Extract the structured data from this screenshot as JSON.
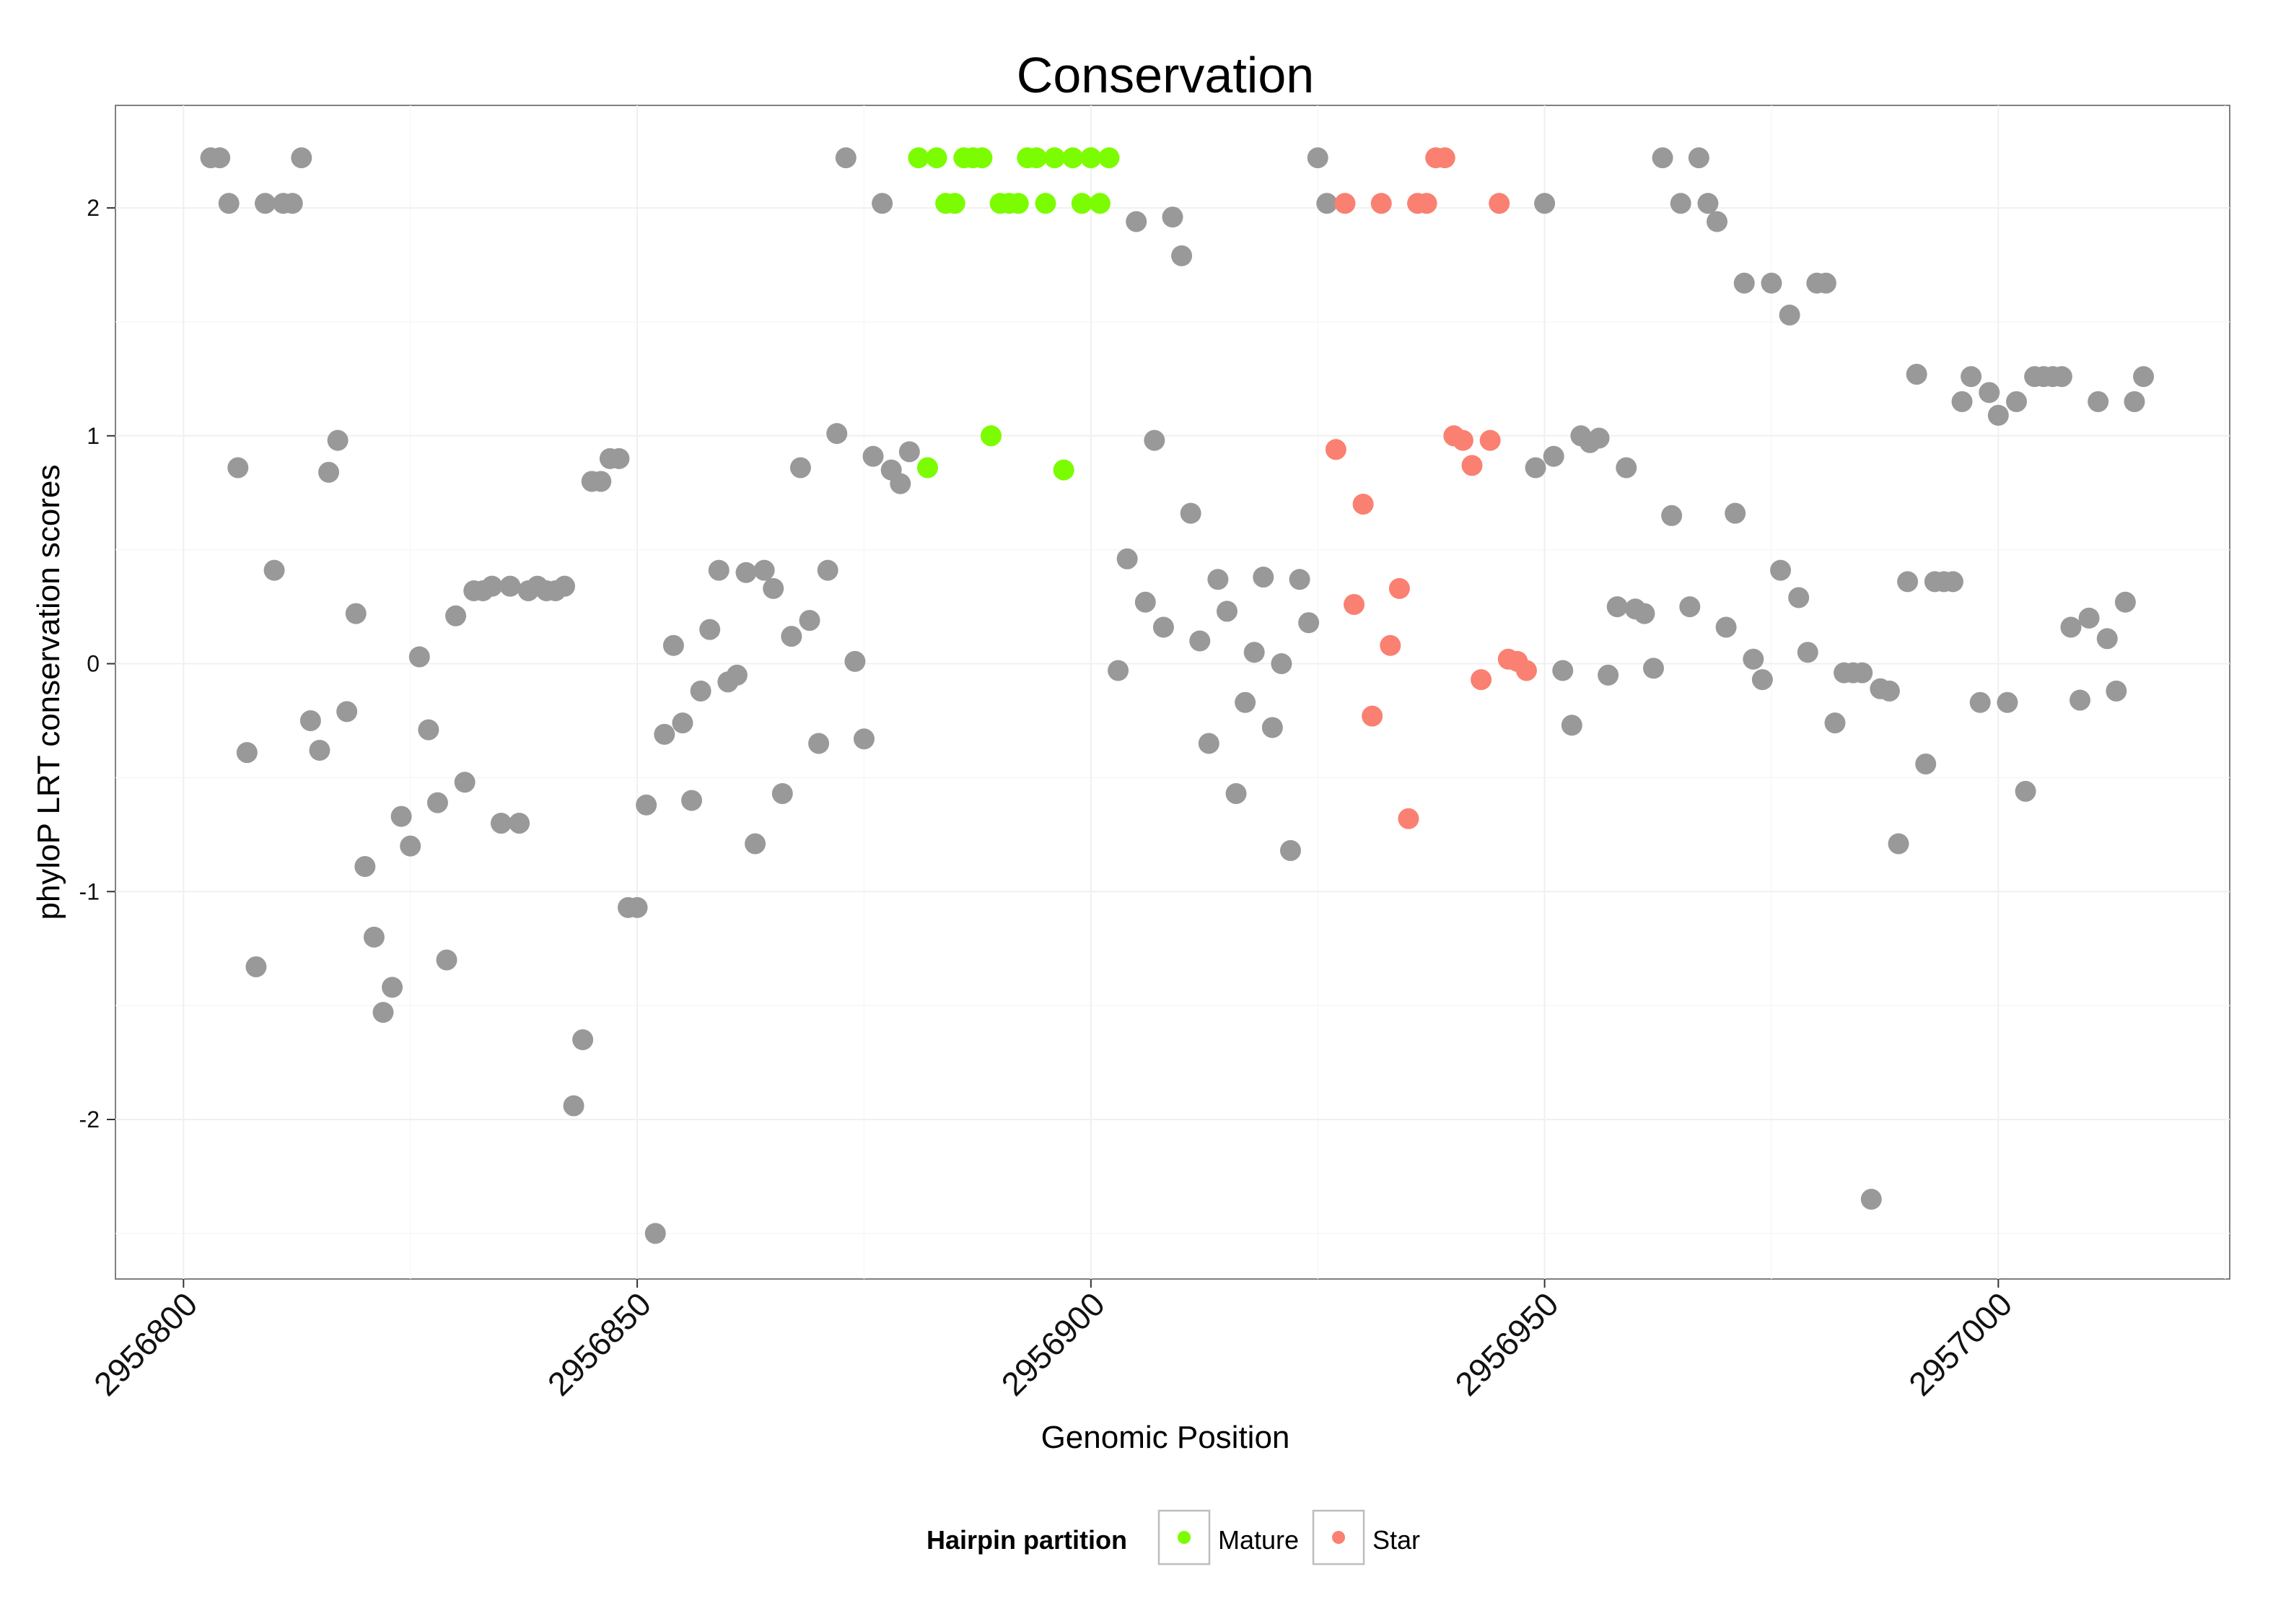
{
  "chart_data": {
    "type": "scatter",
    "title": "Conservation",
    "xlabel": "Genomic Position",
    "ylabel": "phyloP LRT conservation scores",
    "xlim": [
      2956792.5,
      2957025.5
    ],
    "ylim": [
      -2.7,
      2.45
    ],
    "x_ticks": [
      2956800,
      2956850,
      2956900,
      2956950,
      2957000
    ],
    "x_tick_labels": [
      "2956800",
      "2956850",
      "2956900",
      "2956950",
      "2957000"
    ],
    "y_ticks": [
      -2,
      -1,
      0,
      1,
      2
    ],
    "y_tick_labels": [
      "-2",
      "-1",
      "0",
      "1",
      "2"
    ],
    "grid": true,
    "legend": {
      "title": "Hairpin partition",
      "placement": "bottom",
      "entries": [
        {
          "label": "Mature",
          "color": "#7cfc00"
        },
        {
          "label": "Star",
          "color": "#fa8072"
        }
      ]
    },
    "colors": {
      "Other": "#999999",
      "Mature": "#7cfc00",
      "Star": "#fa8072"
    },
    "series": [
      {
        "name": "Other",
        "points": [
          [
            2956803,
            2.22
          ],
          [
            2956804,
            2.22
          ],
          [
            2956805,
            2.02
          ],
          [
            2956806,
            0.86
          ],
          [
            2956807,
            -0.39
          ],
          [
            2956808,
            -1.33
          ],
          [
            2956809,
            2.02
          ],
          [
            2956810,
            0.41
          ],
          [
            2956811,
            2.02
          ],
          [
            2956812,
            2.02
          ],
          [
            2956813,
            2.22
          ],
          [
            2956814,
            -0.25
          ],
          [
            2956815,
            -0.38
          ],
          [
            2956816,
            0.84
          ],
          [
            2956817,
            0.98
          ],
          [
            2956818,
            -0.21
          ],
          [
            2956819,
            0.22
          ],
          [
            2956820,
            -0.89
          ],
          [
            2956821,
            -1.2
          ],
          [
            2956822,
            -1.53
          ],
          [
            2956823,
            -1.42
          ],
          [
            2956824,
            -0.67
          ],
          [
            2956825,
            -0.8
          ],
          [
            2956826,
            0.03
          ],
          [
            2956827,
            -0.29
          ],
          [
            2956828,
            -0.61
          ],
          [
            2956829,
            -1.3
          ],
          [
            2956830,
            0.21
          ],
          [
            2956831,
            -0.52
          ],
          [
            2956832,
            0.32
          ],
          [
            2956833,
            0.32
          ],
          [
            2956834,
            0.34
          ],
          [
            2956835,
            -0.7
          ],
          [
            2956836,
            0.34
          ],
          [
            2956837,
            -0.7
          ],
          [
            2956838,
            0.32
          ],
          [
            2956839,
            0.34
          ],
          [
            2956840,
            0.32
          ],
          [
            2956841,
            0.32
          ],
          [
            2956842,
            0.34
          ],
          [
            2956843,
            -1.94
          ],
          [
            2956844,
            -1.65
          ],
          [
            2956845,
            0.8
          ],
          [
            2956846,
            0.8
          ],
          [
            2956847,
            0.9
          ],
          [
            2956848,
            0.9
          ],
          [
            2956849,
            -1.07
          ],
          [
            2956850,
            -1.07
          ],
          [
            2956851,
            -0.62
          ],
          [
            2956852,
            -2.5
          ],
          [
            2956853,
            -0.31
          ],
          [
            2956854,
            0.08
          ],
          [
            2956855,
            -0.26
          ],
          [
            2956856,
            -0.6
          ],
          [
            2956857,
            -0.12
          ],
          [
            2956858,
            0.15
          ],
          [
            2956859,
            0.41
          ],
          [
            2956860,
            -0.08
          ],
          [
            2956861,
            -0.05
          ],
          [
            2956862,
            0.4
          ],
          [
            2956863,
            -0.79
          ],
          [
            2956864,
            0.41
          ],
          [
            2956865,
            0.33
          ],
          [
            2956866,
            -0.57
          ],
          [
            2956867,
            0.12
          ],
          [
            2956868,
            0.86
          ],
          [
            2956869,
            0.19
          ],
          [
            2956870,
            -0.35
          ],
          [
            2956871,
            0.41
          ],
          [
            2956872,
            1.01
          ],
          [
            2956873,
            2.22
          ],
          [
            2956874,
            0.01
          ],
          [
            2956875,
            -0.33
          ],
          [
            2956876,
            0.91
          ],
          [
            2956877,
            2.02
          ],
          [
            2956878,
            0.85
          ],
          [
            2956879,
            0.79
          ],
          [
            2956880,
            0.93
          ],
          [
            2956903,
            -0.03
          ],
          [
            2956904,
            0.46
          ],
          [
            2956905,
            1.94
          ],
          [
            2956906,
            0.27
          ],
          [
            2956907,
            0.98
          ],
          [
            2956908,
            0.16
          ],
          [
            2956909,
            1.96
          ],
          [
            2956910,
            1.79
          ],
          [
            2956911,
            0.66
          ],
          [
            2956912,
            0.1
          ],
          [
            2956913,
            -0.35
          ],
          [
            2956914,
            0.37
          ],
          [
            2956915,
            0.23
          ],
          [
            2956916,
            -0.57
          ],
          [
            2956917,
            -0.17
          ],
          [
            2956918,
            0.05
          ],
          [
            2956919,
            0.38
          ],
          [
            2956920,
            -0.28
          ],
          [
            2956921,
            0.0
          ],
          [
            2956922,
            -0.82
          ],
          [
            2956923,
            0.37
          ],
          [
            2956924,
            0.18
          ],
          [
            2956925,
            2.22
          ],
          [
            2956926,
            2.02
          ],
          [
            2956949,
            0.86
          ],
          [
            2956950,
            2.02
          ],
          [
            2956951,
            0.91
          ],
          [
            2956952,
            -0.03
          ],
          [
            2956953,
            -0.27
          ],
          [
            2956954,
            1.0
          ],
          [
            2956955,
            0.97
          ],
          [
            2956956,
            0.99
          ],
          [
            2956957,
            -0.05
          ],
          [
            2956958,
            0.25
          ],
          [
            2956959,
            0.86
          ],
          [
            2956960,
            0.24
          ],
          [
            2956961,
            0.22
          ],
          [
            2956962,
            -0.02
          ],
          [
            2956963,
            2.22
          ],
          [
            2956964,
            0.65
          ],
          [
            2956965,
            2.02
          ],
          [
            2956966,
            0.25
          ],
          [
            2956967,
            2.22
          ],
          [
            2956968,
            2.02
          ],
          [
            2956969,
            1.94
          ],
          [
            2956970,
            0.16
          ],
          [
            2956971,
            0.66
          ],
          [
            2956972,
            1.67
          ],
          [
            2956973,
            0.02
          ],
          [
            2956974,
            -0.07
          ],
          [
            2956975,
            1.67
          ],
          [
            2956976,
            0.41
          ],
          [
            2956977,
            1.53
          ],
          [
            2956978,
            0.29
          ],
          [
            2956979,
            0.05
          ],
          [
            2956980,
            1.67
          ],
          [
            2956981,
            1.67
          ],
          [
            2956982,
            -0.26
          ],
          [
            2956983,
            -0.04
          ],
          [
            2956984,
            -0.04
          ],
          [
            2956985,
            -0.04
          ],
          [
            2956986,
            -2.35
          ],
          [
            2956987,
            -0.11
          ],
          [
            2956988,
            -0.12
          ],
          [
            2956989,
            -0.79
          ],
          [
            2956990,
            0.36
          ],
          [
            2956991,
            1.27
          ],
          [
            2956992,
            -0.44
          ],
          [
            2956993,
            0.36
          ],
          [
            2956994,
            0.36
          ],
          [
            2956995,
            0.36
          ],
          [
            2956996,
            1.15
          ],
          [
            2956997,
            1.26
          ],
          [
            2956998,
            -0.17
          ],
          [
            2956999,
            1.19
          ],
          [
            2957000,
            1.09
          ],
          [
            2957001,
            -0.17
          ],
          [
            2957002,
            1.15
          ],
          [
            2957003,
            -0.56
          ],
          [
            2957004,
            1.26
          ],
          [
            2957005,
            1.26
          ],
          [
            2957006,
            1.26
          ],
          [
            2957007,
            1.26
          ],
          [
            2957008,
            0.16
          ],
          [
            2957009,
            -0.16
          ],
          [
            2957010,
            0.2
          ],
          [
            2957011,
            1.15
          ],
          [
            2957012,
            0.11
          ],
          [
            2957013,
            -0.12
          ],
          [
            2957014,
            0.27
          ],
          [
            2957015,
            1.15
          ],
          [
            2957016,
            1.26
          ]
        ]
      },
      {
        "name": "Mature",
        "points": [
          [
            2956881,
            2.22
          ],
          [
            2956882,
            0.86
          ],
          [
            2956883,
            2.22
          ],
          [
            2956884,
            2.02
          ],
          [
            2956885,
            2.02
          ],
          [
            2956886,
            2.22
          ],
          [
            2956887,
            2.22
          ],
          [
            2956888,
            2.22
          ],
          [
            2956889,
            1.0
          ],
          [
            2956890,
            2.02
          ],
          [
            2956891,
            2.02
          ],
          [
            2956892,
            2.02
          ],
          [
            2956893,
            2.22
          ],
          [
            2956894,
            2.22
          ],
          [
            2956895,
            2.02
          ],
          [
            2956896,
            2.22
          ],
          [
            2956897,
            0.85
          ],
          [
            2956898,
            2.22
          ],
          [
            2956899,
            2.02
          ],
          [
            2956900,
            2.22
          ],
          [
            2956901,
            2.02
          ],
          [
            2956902,
            2.22
          ]
        ]
      },
      {
        "name": "Star",
        "points": [
          [
            2956927,
            0.94
          ],
          [
            2956928,
            2.02
          ],
          [
            2956929,
            0.26
          ],
          [
            2956930,
            0.7
          ],
          [
            2956931,
            -0.23
          ],
          [
            2956932,
            2.02
          ],
          [
            2956933,
            0.08
          ],
          [
            2956934,
            0.33
          ],
          [
            2956935,
            -0.68
          ],
          [
            2956936,
            2.02
          ],
          [
            2956937,
            2.02
          ],
          [
            2956938,
            2.22
          ],
          [
            2956939,
            2.22
          ],
          [
            2956940,
            1.0
          ],
          [
            2956941,
            0.98
          ],
          [
            2956942,
            0.87
          ],
          [
            2956943,
            -0.07
          ],
          [
            2956944,
            0.98
          ],
          [
            2956945,
            2.02
          ],
          [
            2956946,
            0.02
          ],
          [
            2956947,
            0.01
          ],
          [
            2956948,
            -0.03
          ]
        ]
      }
    ]
  }
}
